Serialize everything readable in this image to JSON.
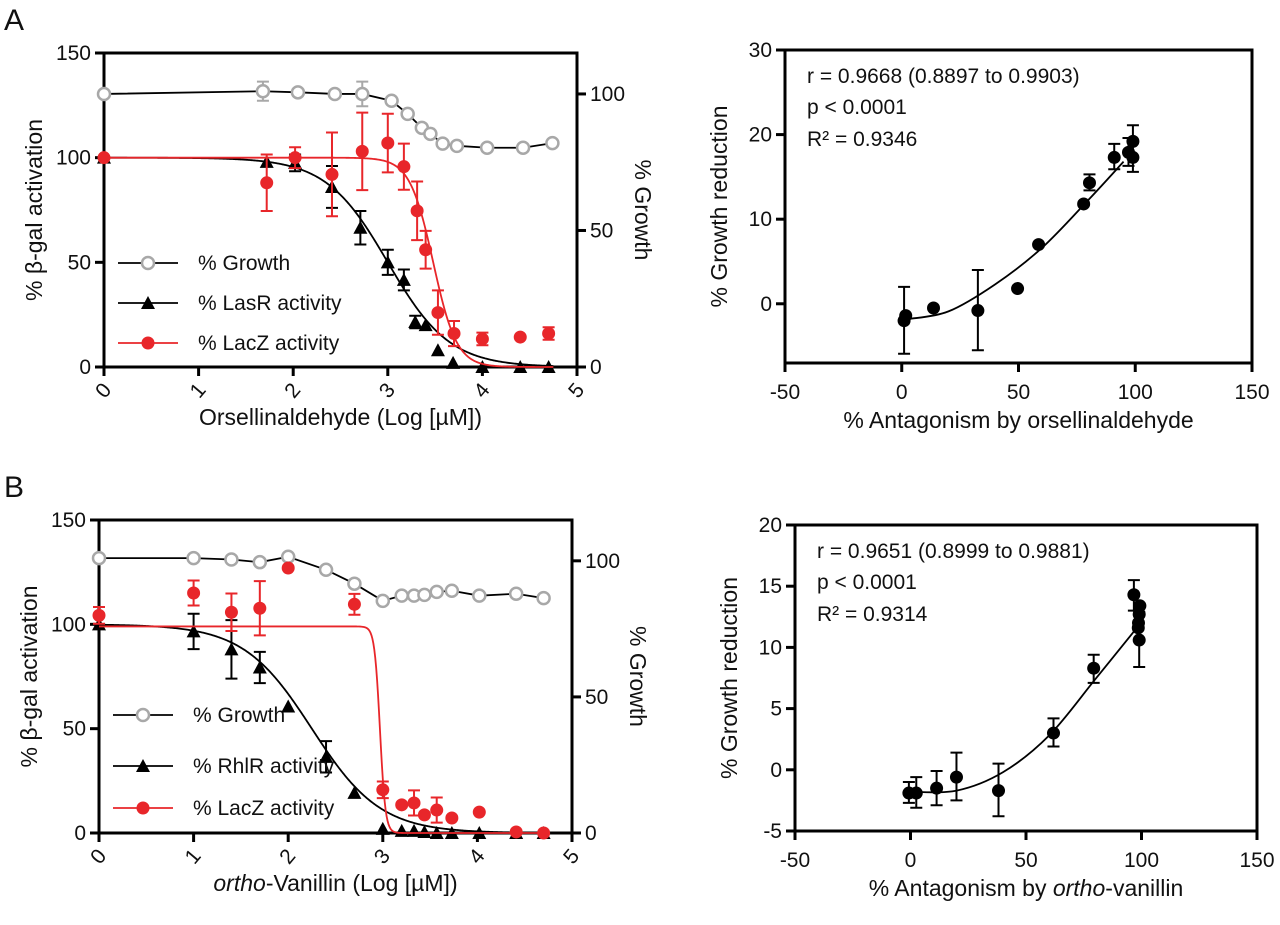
{
  "colors": {
    "growth": "#a8a8a8",
    "receptor": "#000000",
    "lacz": "#e8262a",
    "axis": "#000000"
  },
  "chart_data": [
    {
      "panel": "A",
      "type": "line",
      "xlabel": "Orsellinaldehyde (Log [µM])",
      "ylabel": "% β-gal activation",
      "y2label": "% Growth",
      "xlim": [
        0,
        5
      ],
      "ylim": [
        0,
        150
      ],
      "y2lim": [
        0,
        115
      ],
      "xticks": [
        "0",
        "1",
        "2",
        "3",
        "4",
        "5"
      ],
      "yticks": [
        "0",
        "50",
        "100",
        "150"
      ],
      "y2ticks": [
        "0",
        "50",
        "100"
      ],
      "legend": "bottom-left",
      "series": [
        {
          "name": "% Growth",
          "axis": "right",
          "marker": "open-circle",
          "color": "#a8a8a8",
          "fit": "connect",
          "x": [
            0,
            1.68,
            2.05,
            2.44,
            2.73,
            3.04,
            3.21,
            3.36,
            3.45,
            3.58,
            3.73,
            4.05,
            4.43,
            4.74
          ],
          "y": [
            100,
            101,
            100.6,
            100,
            100,
            97.5,
            92.7,
            87.6,
            85.4,
            81.8,
            81,
            80.3,
            80.3,
            82
          ],
          "err": [
            0,
            3.5,
            0,
            0,
            4.5,
            0,
            0,
            0,
            0,
            0,
            0,
            0,
            0,
            0
          ]
        },
        {
          "name": "% LasR activity",
          "axis": "left",
          "marker": "triangle",
          "color": "#000000",
          "fit": {
            "ic50_log": 3.0,
            "hill": 1.33,
            "top": 100
          },
          "x": [
            0,
            1.72,
            2.02,
            2.41,
            2.71,
            3.0,
            3.17,
            3.29,
            3.4,
            3.53,
            3.69,
            4.0,
            4.4,
            4.7
          ],
          "y": [
            100,
            98,
            97.5,
            86,
            66.5,
            50,
            41.6,
            21.5,
            20,
            8,
            2,
            0,
            0,
            0
          ],
          "err": [
            0,
            0,
            4,
            10,
            8,
            6,
            5,
            3,
            0,
            0,
            0,
            0,
            0,
            0
          ]
        },
        {
          "name": "% LacZ activity",
          "axis": "left",
          "marker": "circle",
          "color": "#e8262a",
          "fit": {
            "ic50_log": 3.48,
            "hill": 3.5,
            "top": 100
          },
          "x": [
            0,
            1.72,
            2.02,
            2.41,
            2.73,
            3.0,
            3.17,
            3.31,
            3.4,
            3.53,
            3.7,
            4.0,
            4.4,
            4.7
          ],
          "y": [
            100,
            88,
            100,
            92,
            103,
            107,
            95.7,
            74.6,
            56,
            26,
            16,
            13.4,
            14.3,
            16
          ],
          "err": [
            0,
            13.5,
            5,
            20,
            18.5,
            14,
            11,
            14,
            9,
            10.6,
            6,
            3,
            0,
            3
          ]
        }
      ]
    },
    {
      "panel": "",
      "type": "scatter",
      "xlabel": "% Antagonism by orsellinaldehyde",
      "ylabel": "% Growth reduction",
      "xlim": [
        -50,
        150
      ],
      "ylim": [
        -7,
        30
      ],
      "xticks": [
        "-50",
        "0",
        "50",
        "100",
        "150"
      ],
      "yticks": [
        "0",
        "10",
        "20",
        "30"
      ],
      "stats": {
        "r_text": "r = 0.9668 (0.8897 to 0.9903)",
        "p_text": "p < 0.0001",
        "r2_text": "R² = 0.9346"
      },
      "points": {
        "x": [
          1,
          1.7,
          13.6,
          32.6,
          49.6,
          58.6,
          77.9,
          80.4,
          91,
          97.1,
          99,
          99
        ],
        "y": [
          -2,
          -1.4,
          -0.5,
          -0.8,
          1.8,
          7,
          11.8,
          14.3,
          17.3,
          17.9,
          19.2,
          17.3
        ],
        "err_hi": [
          2,
          null,
          null,
          4,
          null,
          null,
          null,
          15.3,
          18.9,
          19.6,
          21.1,
          null
        ],
        "err_lo": [
          -5.9,
          null,
          null,
          -5.5,
          null,
          null,
          null,
          13.4,
          15.9,
          16.3,
          15.6,
          null
        ]
      },
      "fit_line": {
        "x": [
          3,
          20,
          40,
          60,
          80,
          95
        ],
        "y": [
          -1.8,
          -0.9,
          2.3,
          6.6,
          12.3,
          16.8
        ]
      }
    },
    {
      "panel": "B",
      "type": "line",
      "xlabel_italic": "ortho",
      "xlabel": "-Vanillin (Log [µM])",
      "ylabel": "% β-gal activation",
      "y2label": "% Growth",
      "xlim": [
        0,
        5
      ],
      "ylim": [
        0,
        150
      ],
      "y2lim": [
        0,
        115
      ],
      "xticks": [
        "0",
        "1",
        "2",
        "3",
        "4",
        "5"
      ],
      "yticks": [
        "0",
        "50",
        "100",
        "150"
      ],
      "y2ticks": [
        "0",
        "50",
        "100"
      ],
      "legend": "bottom-left",
      "series": [
        {
          "name": "% Growth",
          "axis": "right",
          "marker": "open-circle",
          "color": "#a8a8a8",
          "fit": "connect",
          "x": [
            0,
            1.0,
            1.4,
            1.7,
            2.0,
            2.4,
            2.7,
            3.0,
            3.2,
            3.33,
            3.44,
            3.57,
            3.73,
            4.02,
            4.41,
            4.7
          ],
          "y": [
            101,
            101,
            100.5,
            99.5,
            101.5,
            96.7,
            91.6,
            85.3,
            87.2,
            87.2,
            87.5,
            88.6,
            89,
            87.2,
            87.9,
            86.3
          ],
          "err": [
            0,
            0,
            0,
            0,
            0,
            0,
            0,
            0,
            0,
            0,
            0,
            0,
            0,
            0,
            0,
            0
          ]
        },
        {
          "name": "% RhlR activity",
          "axis": "left",
          "marker": "triangle",
          "color": "#000000",
          "fit": {
            "ic50_log": 2.25,
            "hill": 1.2,
            "top": 100
          },
          "x": [
            0,
            1.0,
            1.4,
            1.7,
            2.0,
            2.4,
            2.7,
            3.0,
            3.2,
            3.33,
            3.44,
            3.57,
            3.73,
            4.02,
            4.41,
            4.7
          ],
          "y": [
            100,
            96.6,
            88,
            79.3,
            60.6,
            36.5,
            19.2,
            2,
            1,
            1,
            0.5,
            0,
            0,
            0,
            0,
            0
          ],
          "err": [
            0,
            8.5,
            14,
            7.5,
            0,
            7.5,
            0,
            0,
            0,
            0,
            0,
            0,
            0,
            0,
            0,
            0
          ]
        },
        {
          "name": "% LacZ activity",
          "axis": "left",
          "marker": "circle",
          "color": "#e8262a",
          "fit": {
            "ic50_log": 2.97,
            "hill": 15,
            "top": 99
          },
          "x": [
            0,
            1.0,
            1.4,
            1.7,
            2.0,
            2.7,
            3.0,
            3.2,
            3.33,
            3.44,
            3.57,
            3.73,
            4.02,
            4.41,
            4.7
          ],
          "y": [
            104.3,
            115,
            105.8,
            107.7,
            127,
            109.6,
            20.7,
            13.5,
            14.4,
            8.7,
            11,
            7.2,
            10,
            0.5,
            0
          ],
          "err": [
            4,
            6,
            9,
            13,
            0,
            5,
            4,
            0,
            6,
            0,
            6,
            0,
            0,
            0,
            0
          ]
        }
      ]
    },
    {
      "panel": "",
      "type": "scatter",
      "xlabel_prefix": "% Antagonism by ",
      "xlabel_italic": "ortho",
      "xlabel": "-vanillin",
      "ylabel": "% Growth reduction",
      "xlim": [
        -50,
        150
      ],
      "ylim": [
        -5,
        20
      ],
      "xticks": [
        "-50",
        "0",
        "50",
        "100",
        "150"
      ],
      "yticks": [
        "-5",
        "0",
        "5",
        "10",
        "15",
        "20"
      ],
      "stats": {
        "r_text": "r = 0.9651 (0.8999 to 0.9881)",
        "p_text": "p < 0.0001",
        "r2_text": "R² = 0.9314"
      },
      "points": {
        "x": [
          -0.7,
          2.5,
          11.3,
          19.9,
          38.1,
          61.9,
          79.3,
          96.7,
          99.3,
          99,
          98.7,
          98.6,
          99
        ],
        "y": [
          -1.9,
          -1.9,
          -1.5,
          -0.6,
          -1.7,
          3.0,
          8.3,
          14.3,
          13.4,
          12.7,
          12,
          11.6,
          10.6
        ],
        "err_hi": [
          -1,
          -0.6,
          -0.1,
          1.4,
          0.5,
          4.2,
          9.4,
          15.5,
          null,
          null,
          null,
          null,
          12.9
        ],
        "err_lo": [
          -2.7,
          -3.1,
          -2.9,
          -2.5,
          -3.8,
          1.9,
          7.1,
          13,
          null,
          null,
          null,
          null,
          8.4
        ]
      },
      "fit_line": {
        "x": [
          0,
          20,
          40,
          60,
          80,
          98
        ],
        "y": [
          -1.8,
          -1.7,
          -0.2,
          2.8,
          7.4,
          11.6
        ]
      }
    }
  ]
}
